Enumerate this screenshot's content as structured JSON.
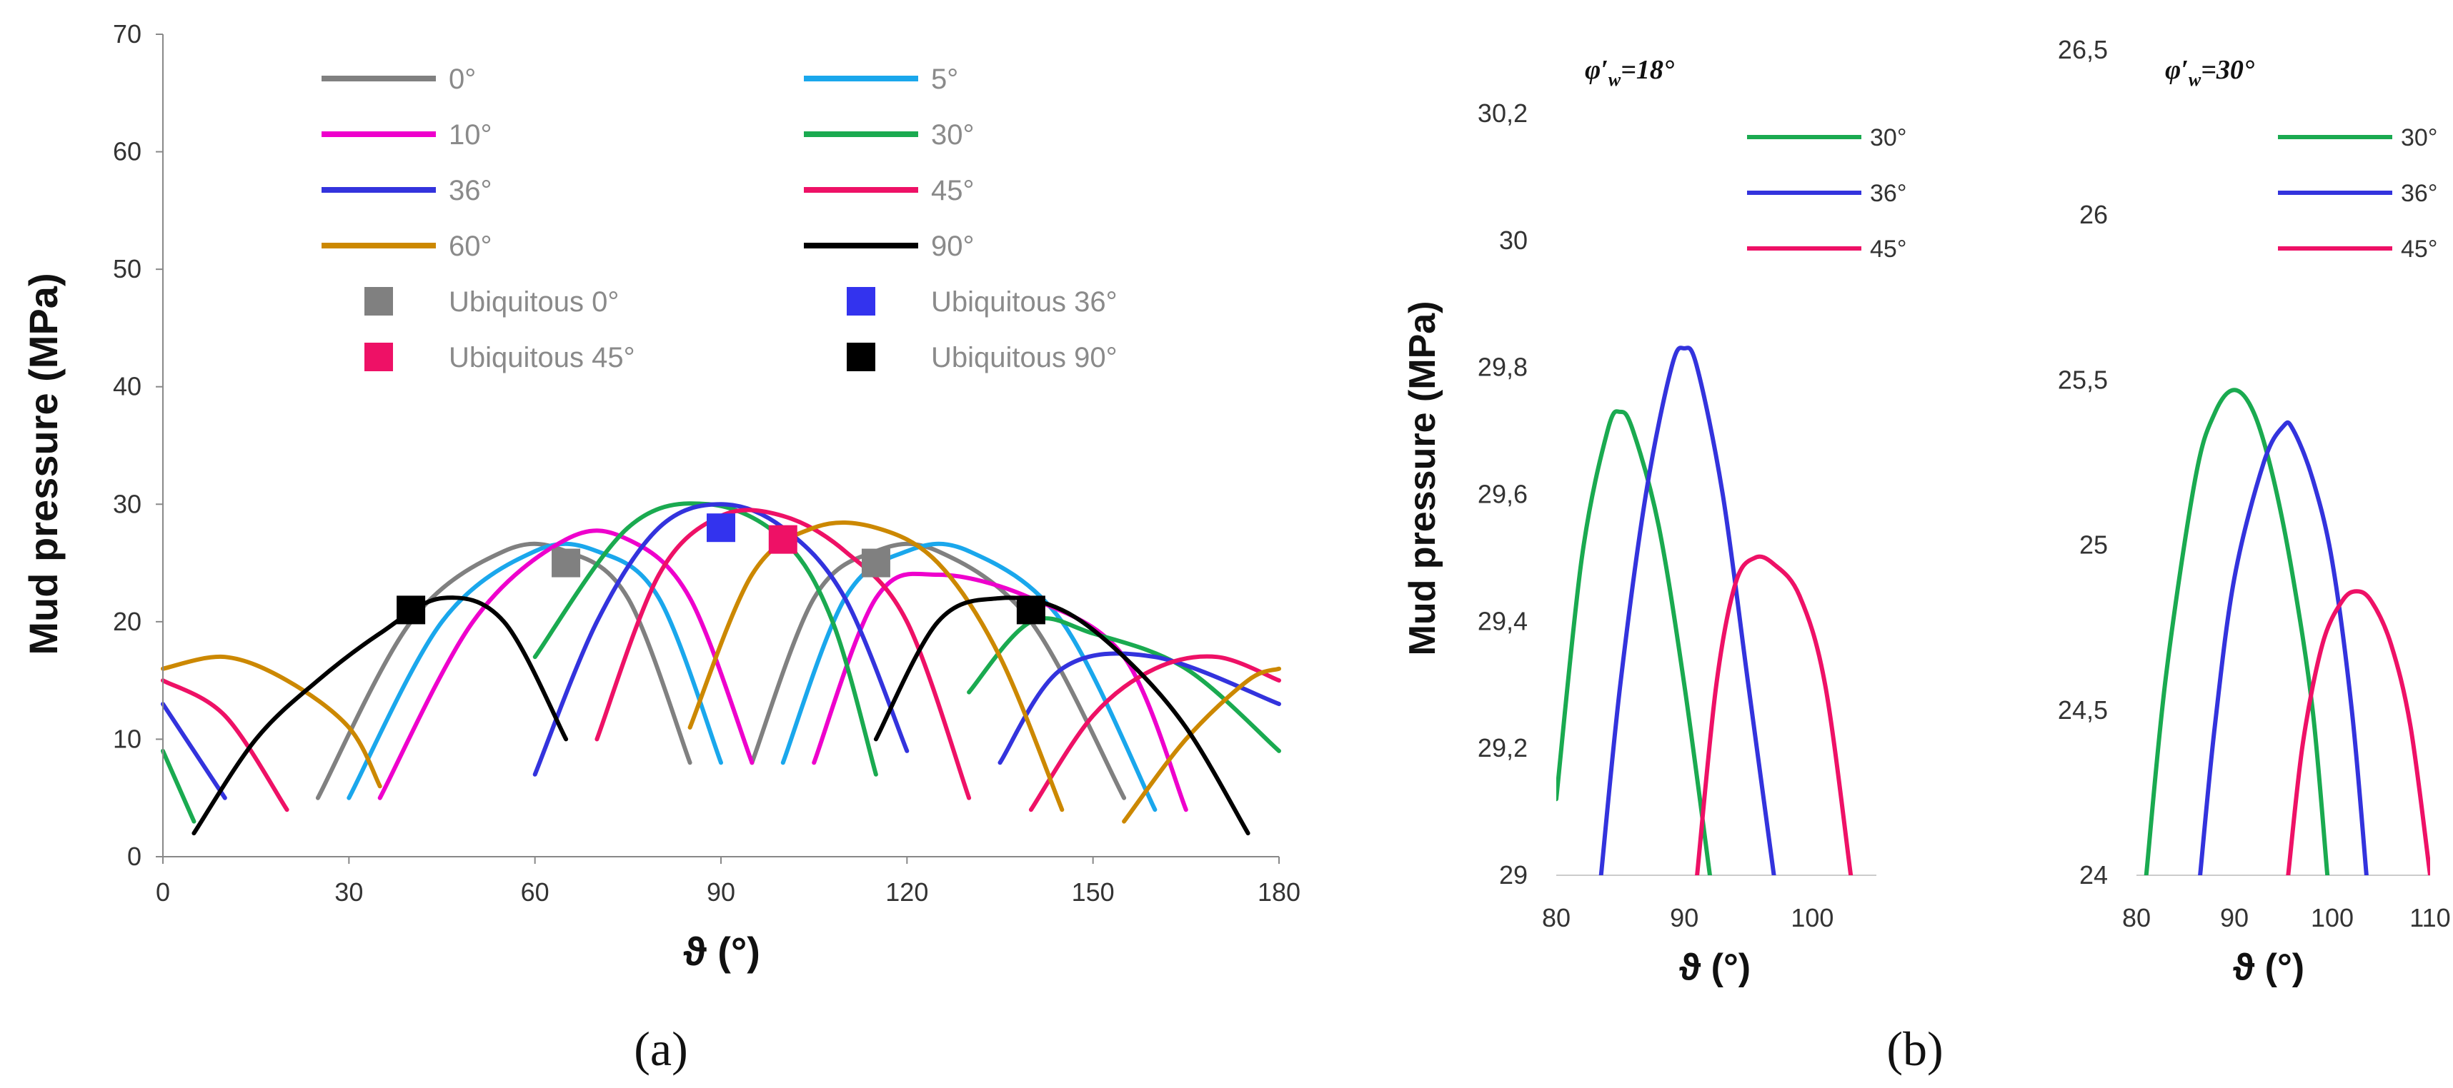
{
  "chart_data": [
    {
      "panel": "a",
      "panel_label": "(a)",
      "type": "line",
      "ylabel": "Mud pressure (MPa)",
      "xlabel": "ϑ (°)",
      "xlim": [
        0,
        180
      ],
      "ylim": [
        0,
        70
      ],
      "xticks": [
        "0",
        "30",
        "60",
        "90",
        "120",
        "150",
        "180"
      ],
      "yticks": [
        "0",
        "10",
        "20",
        "30",
        "40",
        "50",
        "60",
        "70"
      ],
      "series": [
        {
          "name": "0°",
          "color": "#808080",
          "segments": [
            [
              [
                25,
                5
              ],
              [
                40,
                20
              ],
              [
                55,
                26
              ],
              [
                65,
                26
              ],
              [
                75,
                22
              ],
              [
                85,
                8
              ]
            ],
            [
              [
                95,
                8
              ],
              [
                105,
                22
              ],
              [
                115,
                26
              ],
              [
                125,
                26
              ],
              [
                140,
                20
              ],
              [
                155,
                5
              ]
            ]
          ]
        },
        {
          "name": "5°",
          "color": "#1aa7ec",
          "segments": [
            [
              [
                30,
                5
              ],
              [
                45,
                20
              ],
              [
                60,
                26
              ],
              [
                70,
                26
              ],
              [
                80,
                22
              ],
              [
                90,
                8
              ]
            ],
            [
              [
                100,
                8
              ],
              [
                110,
                22
              ],
              [
                120,
                26
              ],
              [
                130,
                26
              ],
              [
                145,
                20
              ],
              [
                160,
                4
              ]
            ]
          ]
        },
        {
          "name": "10°",
          "color": "#ee00cc",
          "segments": [
            [
              [
                35,
                5
              ],
              [
                50,
                20
              ],
              [
                65,
                27
              ],
              [
                75,
                27
              ],
              [
                85,
                22
              ],
              [
                95,
                8
              ]
            ],
            [
              [
                105,
                8
              ],
              [
                115,
                22
              ],
              [
                125,
                24
              ],
              [
                140,
                22
              ],
              [
                155,
                17
              ],
              [
                165,
                4
              ]
            ]
          ]
        },
        {
          "name": "30°",
          "color": "#1aaa50",
          "segments": [
            [
              [
                0,
                9
              ],
              [
                5,
                3
              ]
            ],
            [
              [
                60,
                17
              ],
              [
                75,
                28
              ],
              [
                88,
                30
              ],
              [
                100,
                27
              ],
              [
                108,
                20
              ],
              [
                115,
                7
              ]
            ],
            [
              [
                130,
                14
              ],
              [
                140,
                20
              ],
              [
                150,
                19
              ],
              [
                165,
                16
              ],
              [
                180,
                9
              ]
            ]
          ]
        },
        {
          "name": "36°",
          "color": "#3333dd",
          "segments": [
            [
              [
                0,
                13
              ],
              [
                10,
                5
              ]
            ],
            [
              [
                60,
                7
              ],
              [
                70,
                20
              ],
              [
                80,
                28
              ],
              [
                90,
                30
              ],
              [
                100,
                28
              ],
              [
                110,
                22
              ],
              [
                120,
                9
              ]
            ],
            [
              [
                135,
                8
              ],
              [
                145,
                16
              ],
              [
                160,
                17
              ],
              [
                180,
                13
              ]
            ]
          ]
        },
        {
          "name": "45°",
          "color": "#ee1166",
          "segments": [
            [
              [
                0,
                15
              ],
              [
                10,
                12
              ],
              [
                20,
                4
              ]
            ],
            [
              [
                70,
                10
              ],
              [
                80,
                24
              ],
              [
                90,
                29
              ],
              [
                100,
                29
              ],
              [
                110,
                26
              ],
              [
                120,
                20
              ],
              [
                130,
                5
              ]
            ],
            [
              [
                140,
                4
              ],
              [
                150,
                12
              ],
              [
                160,
                16
              ],
              [
                170,
                17
              ],
              [
                180,
                15
              ]
            ]
          ]
        },
        {
          "name": "60°",
          "color": "#cc8800",
          "segments": [
            [
              [
                0,
                16
              ],
              [
                10,
                17
              ],
              [
                20,
                15
              ],
              [
                30,
                11
              ],
              [
                35,
                6
              ]
            ],
            [
              [
                85,
                11
              ],
              [
                95,
                24
              ],
              [
                105,
                28
              ],
              [
                115,
                28
              ],
              [
                125,
                25
              ],
              [
                135,
                17
              ],
              [
                145,
                4
              ]
            ],
            [
              [
                155,
                3
              ],
              [
                165,
                10
              ],
              [
                175,
                15
              ],
              [
                180,
                16
              ]
            ]
          ]
        },
        {
          "name": "90°",
          "color": "#000000",
          "segments": [
            [
              [
                5,
                2
              ],
              [
                15,
                10
              ],
              [
                25,
                15
              ],
              [
                35,
                19
              ],
              [
                45,
                22
              ],
              [
                55,
                20
              ],
              [
                65,
                10
              ]
            ],
            [
              [
                115,
                10
              ],
              [
                125,
                20
              ],
              [
                135,
                22
              ],
              [
                145,
                21
              ],
              [
                155,
                17
              ],
              [
                165,
                11
              ],
              [
                175,
                2
              ]
            ]
          ]
        }
      ],
      "markers": [
        {
          "name": "Ubiquitous 0°",
          "color": "#808080",
          "points": [
            [
              65,
              25
            ],
            [
              115,
              25
            ]
          ]
        },
        {
          "name": "Ubiquitous 36°",
          "color": "#3333ee",
          "points": [
            [
              90,
              28
            ]
          ]
        },
        {
          "name": "Ubiquitous 45°",
          "color": "#ee1166",
          "points": [
            [
              100,
              27
            ]
          ]
        },
        {
          "name": "Ubiquitous 90°",
          "color": "#000000",
          "points": [
            [
              40,
              21
            ],
            [
              140,
              21
            ]
          ]
        }
      ]
    },
    {
      "panel": "b",
      "panel_label": "(b)",
      "type": "line",
      "ylabel": "Mud pressure (MPa)",
      "subplots": [
        {
          "title_prefix": "φ′",
          "title_sub": "w",
          "title_suffix": "=18°",
          "xlabel": "ϑ (°)",
          "xlim": [
            80,
            105
          ],
          "ylim": [
            29,
            30.3
          ],
          "xticks": [
            {
              "v": 80,
              "t": "80"
            },
            {
              "v": 90,
              "t": "90"
            },
            {
              "v": 100,
              "t": "100"
            }
          ],
          "yticks": [
            {
              "v": 29,
              "t": "29"
            },
            {
              "v": 29.2,
              "t": "29,2"
            },
            {
              "v": 29.4,
              "t": "29,4"
            },
            {
              "v": 29.6,
              "t": "29,6"
            },
            {
              "v": 29.8,
              "t": "29,8"
            },
            {
              "v": 30,
              "t": "30"
            },
            {
              "v": 30.2,
              "t": "30,2"
            }
          ],
          "series": [
            {
              "name": "30°",
              "color": "#1aaa50",
              "points": [
                [
                  80,
                  29.12
                ],
                [
                  82,
                  29.5
                ],
                [
                  84,
                  29.7
                ],
                [
                  85,
                  29.73
                ],
                [
                  86,
                  29.7
                ],
                [
                  88,
                  29.55
                ],
                [
                  90,
                  29.3
                ],
                [
                  92,
                  29
                ]
              ]
            },
            {
              "name": "36°",
              "color": "#3333dd",
              "points": [
                [
                  83.5,
                  29
                ],
                [
                  85,
                  29.3
                ],
                [
                  87,
                  29.6
                ],
                [
                  89,
                  29.8
                ],
                [
                  90,
                  29.83
                ],
                [
                  91,
                  29.8
                ],
                [
                  93,
                  29.6
                ],
                [
                  95,
                  29.3
                ],
                [
                  97,
                  29
                ]
              ]
            },
            {
              "name": "45°",
              "color": "#ee1166",
              "points": [
                [
                  91,
                  29
                ],
                [
                  92.5,
                  29.3
                ],
                [
                  94,
                  29.46
                ],
                [
                  95.5,
                  29.5
                ],
                [
                  97,
                  29.49
                ],
                [
                  99,
                  29.44
                ],
                [
                  101,
                  29.3
                ],
                [
                  103,
                  29
                ]
              ]
            }
          ]
        },
        {
          "title_prefix": "φ′",
          "title_sub": "w",
          "title_suffix": "=30°",
          "xlabel": "ϑ (°)",
          "xlim": [
            80,
            110
          ],
          "ylim": [
            24,
            26.5
          ],
          "xticks": [
            {
              "v": 80,
              "t": "80"
            },
            {
              "v": 90,
              "t": "90"
            },
            {
              "v": 100,
              "t": "100"
            },
            {
              "v": 110,
              "t": "110"
            }
          ],
          "yticks": [
            {
              "v": 24,
              "t": "24"
            },
            {
              "v": 24.5,
              "t": "24,5"
            },
            {
              "v": 25,
              "t": "25"
            },
            {
              "v": 25.5,
              "t": "25,5"
            },
            {
              "v": 26,
              "t": "26"
            },
            {
              "v": 26.5,
              "t": "26,5"
            }
          ],
          "series": [
            {
              "name": "30°",
              "color": "#1aaa50",
              "points": [
                [
                  81,
                  24
                ],
                [
                  83,
                  24.6
                ],
                [
                  86,
                  25.2
                ],
                [
                  88,
                  25.4
                ],
                [
                  90,
                  25.47
                ],
                [
                  92,
                  25.4
                ],
                [
                  94,
                  25.2
                ],
                [
                  96,
                  24.9
                ],
                [
                  98,
                  24.5
                ],
                [
                  99.5,
                  24
                ]
              ]
            },
            {
              "name": "36°",
              "color": "#3333dd",
              "points": [
                [
                  86.5,
                  24
                ],
                [
                  88,
                  24.45
                ],
                [
                  90,
                  24.9
                ],
                [
                  93,
                  25.25
                ],
                [
                  95,
                  25.36
                ],
                [
                  96,
                  25.35
                ],
                [
                  98,
                  25.2
                ],
                [
                  100,
                  24.95
                ],
                [
                  102,
                  24.5
                ],
                [
                  103.5,
                  24
                ]
              ]
            },
            {
              "name": "45°",
              "color": "#ee1166",
              "points": [
                [
                  95.5,
                  24
                ],
                [
                  97,
                  24.4
                ],
                [
                  99,
                  24.7
                ],
                [
                  101,
                  24.83
                ],
                [
                  102.5,
                  24.86
                ],
                [
                  104,
                  24.83
                ],
                [
                  106,
                  24.7
                ],
                [
                  108,
                  24.45
                ],
                [
                  110,
                  24
                ]
              ]
            }
          ]
        }
      ]
    }
  ]
}
